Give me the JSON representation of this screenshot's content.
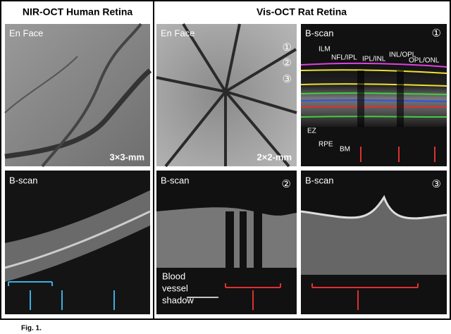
{
  "left": {
    "title": "NIR-OCT Human Retina",
    "en_face": {
      "label": "En Face",
      "scale": "3×3-mm"
    },
    "b_scan": {
      "label": "B-scan"
    }
  },
  "right": {
    "title": "Vis-OCT Rat Retina",
    "en_face": {
      "label": "En Face",
      "scale": "2×2-mm",
      "markers": [
        "①",
        "②",
        "③"
      ]
    },
    "b_scan_1": {
      "label": "B-scan",
      "number": "①",
      "layers": [
        "ILM",
        "NFL/IPL",
        "IPL/INL",
        "INL/OPL",
        "OPL/ONL",
        "EZ",
        "RPE",
        "BM"
      ]
    },
    "b_scan_2": {
      "label": "B-scan",
      "number": "②",
      "annotation": [
        "Blood",
        "vessel",
        "shadow"
      ]
    },
    "b_scan_3": {
      "label": "B-scan",
      "number": "③"
    }
  },
  "caption": "Fig. 1."
}
